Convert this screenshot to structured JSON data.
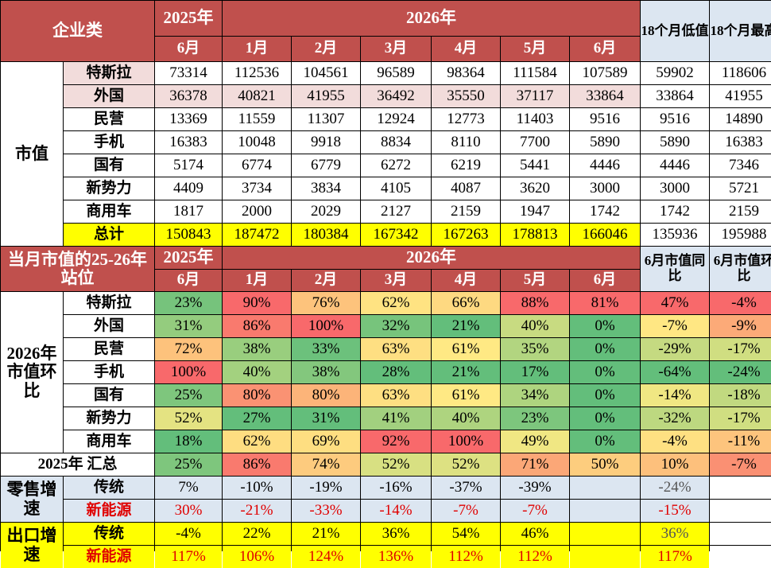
{
  "header1": {
    "title": "企业类",
    "year2025": "2025年",
    "year2026": "2026年",
    "low": "18个月低值",
    "high": "18个月最高",
    "months": [
      "6月",
      "1月",
      "2月",
      "3月",
      "4月",
      "5月",
      "6月"
    ]
  },
  "market_value": {
    "label": "市值",
    "rows": [
      {
        "name": "特斯拉",
        "values": [
          73314,
          112536,
          104561,
          96589,
          98364,
          111584,
          107589
        ],
        "low": 59902,
        "high": 118606
      },
      {
        "name": "外国",
        "values": [
          36378,
          40821,
          41955,
          36492,
          35550,
          37117,
          33864
        ],
        "low": 33864,
        "high": 41955
      },
      {
        "name": "民营",
        "values": [
          13369,
          11559,
          11307,
          12924,
          12773,
          11403,
          9516
        ],
        "low": 9516,
        "high": 14890
      },
      {
        "name": "手机",
        "values": [
          16383,
          10048,
          9918,
          8834,
          8110,
          7700,
          5890
        ],
        "low": 5890,
        "high": 16383
      },
      {
        "name": "国有",
        "values": [
          5174,
          6774,
          6779,
          6272,
          6219,
          5441,
          4446
        ],
        "low": 4446,
        "high": 7346
      },
      {
        "name": "新势力",
        "values": [
          4409,
          3734,
          3834,
          4105,
          4087,
          3620,
          3000
        ],
        "low": 3000,
        "high": 5721
      },
      {
        "name": "商用车",
        "values": [
          1817,
          2000,
          2029,
          2127,
          2159,
          1947,
          1742
        ],
        "low": 1742,
        "high": 2159
      }
    ],
    "total": {
      "name": "总计",
      "values": [
        150843,
        187472,
        180384,
        167342,
        167263,
        178813,
        166046
      ],
      "low": 135936,
      "high": 195988
    }
  },
  "header2": {
    "title": "当月市值的25-26年站位",
    "year2025": "2025年",
    "year2026": "2026年",
    "yoy": "6月市值同比",
    "mom": "6月市值环比",
    "months": [
      "6月",
      "1月",
      "2月",
      "3月",
      "4月",
      "5月",
      "6月"
    ]
  },
  "ranking": {
    "label": "2026年市值环比",
    "rows": [
      {
        "name": "特斯拉",
        "values": [
          "23%",
          "90%",
          "76%",
          "62%",
          "66%",
          "88%",
          "81%"
        ],
        "yoy": "47%",
        "mom": "-4%"
      },
      {
        "name": "外国",
        "values": [
          "31%",
          "86%",
          "100%",
          "32%",
          "21%",
          "40%",
          "0%"
        ],
        "yoy": "-7%",
        "mom": "-9%"
      },
      {
        "name": "民营",
        "values": [
          "72%",
          "38%",
          "33%",
          "63%",
          "61%",
          "35%",
          "0%"
        ],
        "yoy": "-29%",
        "mom": "-17%"
      },
      {
        "name": "手机",
        "values": [
          "100%",
          "40%",
          "38%",
          "28%",
          "21%",
          "17%",
          "0%"
        ],
        "yoy": "-64%",
        "mom": "-24%"
      },
      {
        "name": "国有",
        "values": [
          "25%",
          "80%",
          "80%",
          "63%",
          "61%",
          "34%",
          "0%"
        ],
        "yoy": "-14%",
        "mom": "-18%"
      },
      {
        "name": "新势力",
        "values": [
          "52%",
          "27%",
          "31%",
          "41%",
          "40%",
          "23%",
          "0%"
        ],
        "yoy": "-32%",
        "mom": "-17%"
      },
      {
        "name": "商用车",
        "values": [
          "18%",
          "62%",
          "69%",
          "92%",
          "100%",
          "49%",
          "0%"
        ],
        "yoy": "-4%",
        "mom": "-11%"
      }
    ],
    "summary": {
      "name": "2025年 汇总",
      "values": [
        "25%",
        "86%",
        "74%",
        "52%",
        "52%",
        "71%",
        "50%"
      ],
      "yoy": "10%",
      "mom": "-7%"
    }
  },
  "growth": [
    {
      "label": "零售增速",
      "rows": [
        {
          "name": "传统",
          "values": [
            "7%",
            "-10%",
            "-19%",
            "-16%",
            "-37%",
            "-39%"
          ],
          "total": "-24%"
        },
        {
          "name": "新能源",
          "values": [
            "30%",
            "-21%",
            "-33%",
            "-14%",
            "-7%",
            "-7%"
          ],
          "total": "-15%"
        }
      ]
    },
    {
      "label": "出口增速",
      "rows": [
        {
          "name": "传统",
          "values": [
            "-4%",
            "22%",
            "21%",
            "36%",
            "54%",
            "46%"
          ],
          "total": "36%"
        },
        {
          "name": "新能源",
          "values": [
            "117%",
            "106%",
            "124%",
            "136%",
            "112%",
            "112%"
          ],
          "total": "117%"
        }
      ]
    }
  ]
}
